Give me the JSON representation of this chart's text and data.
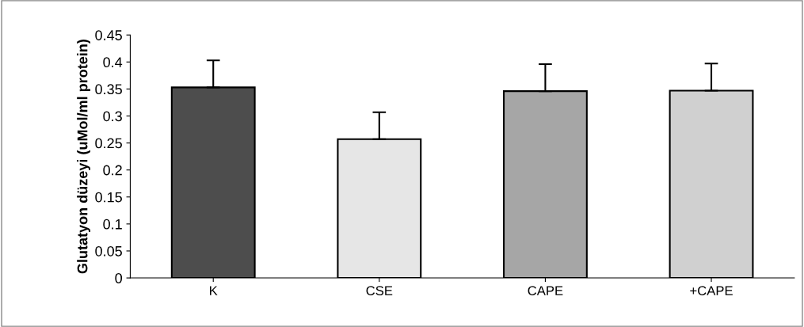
{
  "chart_data": {
    "type": "bar",
    "ylabel": "Glutatyon düzeyi (uMol/ml protein)",
    "categories": [
      "K",
      "CSE",
      "CAPE",
      "+CAPE"
    ],
    "values": [
      0.353,
      0.257,
      0.346,
      0.347
    ],
    "errors": [
      [
        0.353,
        0.403
      ],
      [
        0.257,
        0.307
      ],
      [
        0.346,
        0.396
      ],
      [
        0.347,
        0.397
      ]
    ],
    "colors": [
      "#4d4d4d",
      "#e6e6e6",
      "#a6a6a6",
      "#d0d0d0"
    ],
    "ylim": [
      0,
      0.45
    ],
    "yticks": [
      0,
      {
        "value": 0.05,
        "label": "0.05"
      },
      {
        "value": 0.1,
        "label": "0.1"
      },
      {
        "value": 0.15,
        "label": "0.15"
      },
      {
        "value": 0.2,
        "label": "0.2"
      },
      {
        "value": 0.25,
        "label": "0.25"
      },
      {
        "value": 0.3,
        "label": "0.3"
      },
      {
        "value": 0.35,
        "label": "0.35"
      },
      {
        "value": 0.4,
        "label": "0.4"
      },
      {
        "value": 0.45,
        "label": "0.45"
      }
    ],
    "grid": false,
    "legend": false
  }
}
